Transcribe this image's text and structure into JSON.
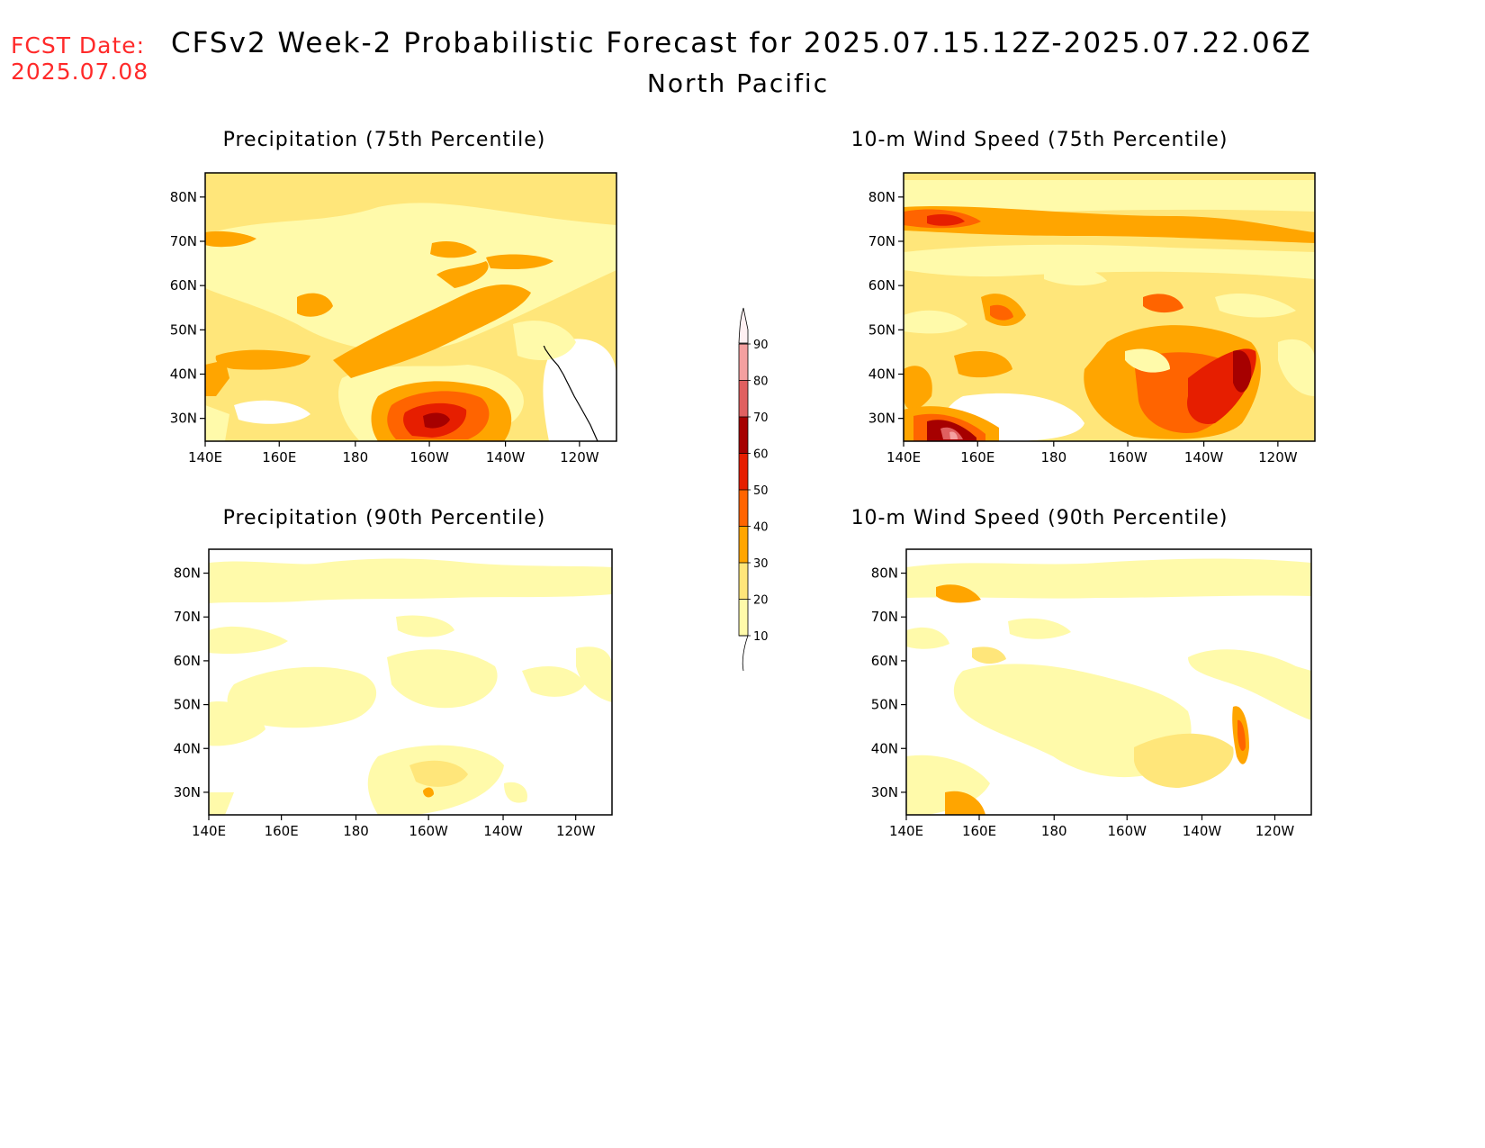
{
  "fcst": {
    "label": "FCST Date:",
    "date": "2025.07.08"
  },
  "title": "CFSv2 Week-2 Probabilistic Forecast for 2025.07.15.12Z-2025.07.22.06Z",
  "subtitle": "North Pacific",
  "panels": [
    {
      "id": "precip75",
      "title": "Precipitation (75th Percentile)"
    },
    {
      "id": "wind75",
      "title": "10-m Wind Speed (75th Percentile)"
    },
    {
      "id": "precip90",
      "title": "Precipitation (90th Percentile)"
    },
    {
      "id": "wind90",
      "title": "10-m Wind Speed (90th Percentile)"
    }
  ],
  "axes": {
    "lat_labels": [
      "80N",
      "70N",
      "60N",
      "50N",
      "40N",
      "30N"
    ],
    "lon_labels": [
      "140E",
      "160E",
      "180",
      "160W",
      "140W",
      "120W"
    ]
  },
  "colorbar": {
    "levels": [
      "10",
      "20",
      "30",
      "40",
      "50",
      "60",
      "70",
      "80",
      "90"
    ],
    "colors": [
      "#fffaaa",
      "#ffe67a",
      "#ffa500",
      "#ff6400",
      "#e61e00",
      "#a60000",
      "#e06060",
      "#f4a0a0",
      "#ffe6ea"
    ]
  }
}
